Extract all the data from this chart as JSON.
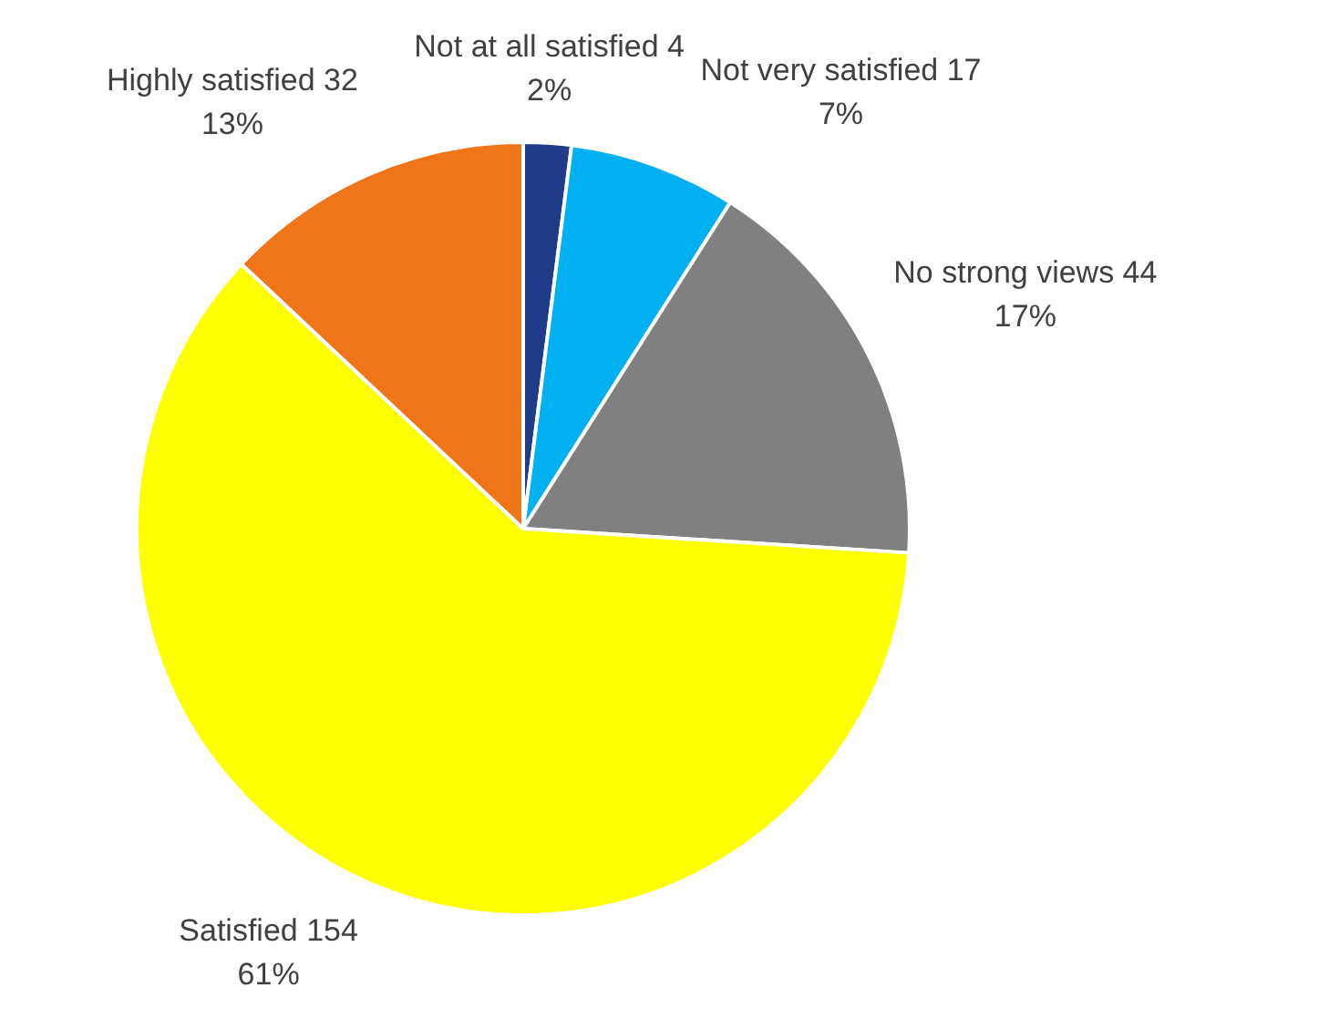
{
  "chart_data": {
    "type": "pie",
    "categories": [
      "Not at all satisfied 4",
      "Not very satisfied 17",
      "No strong views 44",
      "Satisfied 154",
      "Highly satisfied 32"
    ],
    "values": [
      2,
      7,
      17,
      61,
      13
    ],
    "value_labels": [
      "2%",
      "7%",
      "17%",
      "61%",
      "13%"
    ],
    "colors": [
      "#1f3c88",
      "#00b0f0",
      "#808080",
      "#ffff00",
      "#f07418"
    ],
    "legend": false
  }
}
